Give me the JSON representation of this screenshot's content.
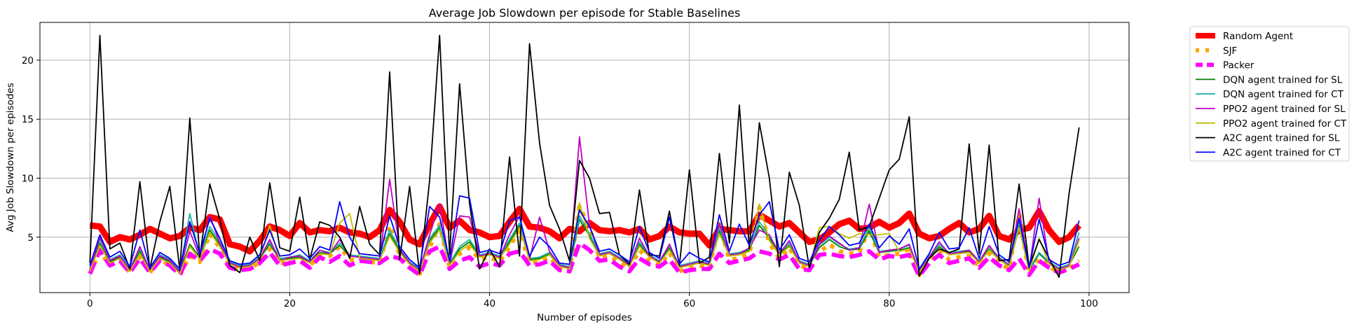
{
  "chart_data": {
    "type": "line",
    "title": "Average Job Slowdown per episode for Stable Baselines",
    "xlabel": "Number of episodes",
    "ylabel": "Avg Job Slowdown per episodes",
    "xlim": [
      -5,
      104
    ],
    "ylim": [
      0.3,
      23.2
    ],
    "xticks": [
      0,
      20,
      40,
      60,
      80,
      100
    ],
    "yticks": [
      5,
      10,
      15,
      20
    ],
    "grid": true,
    "legend_position": "outside-right",
    "series": [
      {
        "name": "Random Agent",
        "color": "#ff0000",
        "style": "solid-thick",
        "values": [
          6.0,
          5.9,
          4.6,
          5.0,
          4.8,
          5.2,
          5.7,
          5.3,
          4.9,
          5.1,
          5.8,
          5.6,
          6.7,
          6.5,
          4.4,
          4.2,
          3.8,
          4.7,
          5.9,
          5.6,
          5.1,
          6.2,
          5.4,
          5.6,
          5.5,
          5.8,
          5.4,
          5.3,
          5.0,
          5.6,
          7.3,
          6.3,
          4.8,
          4.4,
          6.1,
          7.6,
          5.8,
          6.4,
          5.6,
          5.4,
          5.0,
          5.1,
          6.3,
          7.4,
          5.9,
          5.8,
          5.5,
          4.9,
          5.7,
          5.5,
          6.2,
          5.6,
          5.5,
          5.6,
          5.4,
          5.7,
          4.8,
          5.1,
          5.9,
          5.4,
          5.3,
          5.3,
          4.3,
          5.7,
          5.6,
          5.5,
          5.5,
          6.9,
          6.4,
          5.9,
          6.2,
          5.4,
          4.6,
          4.8,
          5.4,
          6.1,
          6.4,
          5.7,
          5.8,
          6.3,
          5.8,
          6.2,
          7.0,
          5.3,
          4.9,
          5.1,
          5.7,
          6.2,
          5.4,
          5.7,
          6.8,
          5.1,
          4.8,
          5.6,
          5.8,
          7.2,
          5.6,
          4.6,
          5.0,
          6.0
        ]
      },
      {
        "name": "SJF",
        "color": "#ffa500",
        "style": "dotted-thick",
        "values": [
          1.9,
          3.8,
          2.6,
          3.0,
          2.0,
          3.3,
          2.0,
          3.1,
          2.6,
          1.8,
          3.4,
          2.9,
          5.3,
          4.1,
          2.6,
          2.3,
          2.3,
          2.9,
          4.0,
          2.8,
          2.8,
          3.0,
          2.6,
          3.4,
          3.4,
          4.2,
          3.1,
          3.0,
          2.9,
          2.8,
          6.0,
          3.5,
          2.5,
          1.9,
          4.1,
          6.1,
          2.4,
          3.6,
          4.1,
          3.1,
          3.3,
          2.9,
          4.2,
          5.6,
          2.8,
          2.9,
          3.3,
          2.3,
          2.1,
          7.6,
          5.8,
          3.2,
          3.4,
          2.9,
          2.3,
          3.9,
          3.0,
          2.6,
          3.7,
          2.1,
          2.4,
          2.6,
          2.4,
          6.1,
          3.1,
          3.2,
          3.6,
          7.5,
          4.5,
          3.2,
          4.1,
          2.6,
          2.3,
          3.7,
          4.4,
          3.8,
          3.6,
          3.7,
          5.8,
          3.3,
          3.5,
          3.6,
          4.0,
          1.8,
          3.0,
          3.8,
          3.1,
          3.3,
          3.4,
          2.5,
          3.6,
          2.8,
          2.3,
          7.0,
          1.9,
          3.2,
          2.5,
          2.0,
          2.3,
          3.0
        ]
      },
      {
        "name": "Packer",
        "color": "#ff00ff",
        "style": "dashed-thick",
        "values": [
          1.9,
          3.9,
          2.6,
          3.0,
          2.0,
          3.2,
          2.0,
          3.0,
          2.6,
          1.8,
          3.6,
          3.0,
          4.0,
          3.6,
          2.4,
          2.2,
          2.3,
          2.8,
          3.7,
          2.6,
          2.8,
          3.0,
          2.4,
          3.3,
          2.9,
          3.4,
          2.6,
          3.0,
          2.9,
          2.8,
          3.4,
          3.2,
          2.4,
          1.8,
          3.8,
          4.2,
          2.3,
          3.0,
          3.3,
          2.5,
          2.8,
          2.6,
          3.6,
          3.8,
          2.6,
          2.7,
          3.0,
          2.2,
          2.1,
          4.5,
          3.9,
          3.0,
          3.1,
          2.5,
          2.1,
          3.2,
          2.7,
          2.5,
          3.1,
          2.0,
          2.2,
          2.3,
          2.3,
          3.6,
          2.8,
          3.0,
          3.2,
          3.8,
          3.6,
          3.1,
          3.5,
          2.3,
          2.2,
          3.5,
          3.6,
          3.4,
          3.3,
          3.5,
          3.8,
          3.1,
          3.4,
          3.3,
          3.5,
          1.7,
          2.8,
          3.5,
          2.8,
          3.0,
          3.2,
          2.4,
          3.3,
          2.6,
          2.2,
          3.2,
          1.8,
          3.0,
          2.4,
          2.0,
          2.3,
          2.7
        ]
      },
      {
        "name": "DQN agent trained for SL",
        "color": "#008000",
        "style": "solid",
        "values": [
          2.3,
          4.5,
          2.9,
          3.3,
          2.3,
          3.8,
          2.2,
          3.3,
          2.9,
          2.1,
          4.4,
          3.3,
          5.6,
          4.4,
          2.8,
          2.5,
          2.6,
          3.2,
          4.4,
          3.1,
          3.2,
          3.3,
          2.9,
          3.7,
          3.6,
          4.3,
          3.4,
          3.3,
          3.2,
          3.1,
          5.3,
          3.9,
          2.8,
          2.2,
          4.7,
          5.8,
          2.7,
          4.0,
          4.6,
          3.4,
          3.6,
          3.3,
          4.6,
          6.0,
          3.1,
          3.2,
          3.6,
          2.6,
          2.4,
          6.5,
          5.1,
          3.5,
          3.7,
          3.2,
          2.6,
          4.4,
          3.4,
          2.9,
          4.1,
          2.5,
          2.7,
          2.9,
          2.7,
          5.5,
          3.5,
          3.6,
          3.9,
          6.0,
          4.9,
          3.6,
          4.3,
          2.9,
          2.6,
          4.1,
          4.8,
          4.2,
          3.9,
          4.0,
          5.5,
          3.7,
          3.8,
          3.9,
          4.1,
          2.1,
          3.3,
          4.2,
          3.6,
          3.7,
          3.8,
          2.9,
          4.0,
          3.2,
          2.6,
          6.0,
          2.2,
          3.6,
          2.8,
          2.3,
          2.6,
          4.2
        ]
      },
      {
        "name": "DQN agent trained for CT",
        "color": "#20b2aa",
        "style": "solid",
        "values": [
          2.5,
          4.8,
          3.1,
          3.5,
          2.4,
          4.0,
          2.3,
          3.5,
          3.1,
          2.2,
          7.0,
          3.4,
          5.9,
          4.6,
          2.9,
          2.6,
          2.7,
          3.3,
          4.6,
          3.2,
          3.3,
          3.5,
          3.0,
          3.9,
          3.7,
          4.5,
          3.5,
          3.4,
          3.3,
          3.2,
          5.6,
          4.0,
          2.9,
          2.3,
          4.9,
          6.0,
          2.8,
          4.2,
          4.8,
          3.5,
          3.7,
          3.4,
          4.8,
          6.2,
          3.2,
          3.3,
          3.7,
          2.7,
          2.5,
          6.8,
          5.3,
          3.6,
          3.8,
          3.3,
          2.7,
          4.6,
          3.5,
          3.0,
          4.3,
          2.6,
          2.8,
          3.0,
          2.8,
          5.8,
          3.6,
          3.7,
          4.0,
          6.3,
          5.1,
          3.7,
          4.5,
          3.0,
          2.7,
          4.3,
          5.0,
          4.4,
          4.0,
          4.1,
          5.8,
          3.8,
          3.9,
          4.0,
          4.3,
          2.2,
          3.4,
          4.4,
          3.7,
          3.8,
          3.9,
          3.0,
          4.2,
          3.3,
          2.7,
          6.3,
          2.3,
          3.7,
          2.9,
          2.4,
          2.7,
          5.4
        ]
      },
      {
        "name": "PPO2 agent trained for SL",
        "color": "#c000c0",
        "style": "solid",
        "values": [
          2.2,
          5.0,
          3.0,
          3.4,
          2.2,
          4.2,
          2.2,
          3.4,
          3.0,
          2.0,
          5.5,
          3.3,
          6.8,
          4.5,
          2.8,
          2.5,
          2.6,
          3.2,
          4.8,
          3.0,
          3.3,
          3.4,
          2.9,
          3.9,
          3.6,
          4.8,
          3.4,
          3.3,
          3.2,
          3.1,
          9.9,
          4.0,
          2.8,
          2.2,
          5.2,
          7.8,
          2.7,
          6.8,
          6.7,
          3.4,
          3.6,
          3.3,
          5.2,
          6.8,
          3.1,
          6.7,
          3.8,
          2.6,
          2.4,
          13.5,
          6.0,
          3.5,
          3.7,
          3.2,
          2.6,
          4.9,
          3.4,
          2.9,
          4.4,
          2.5,
          2.7,
          2.9,
          2.7,
          6.2,
          3.5,
          3.6,
          4.1,
          5.6,
          5.2,
          3.6,
          4.7,
          2.9,
          2.6,
          4.4,
          5.1,
          4.5,
          3.9,
          4.1,
          7.8,
          3.7,
          3.9,
          4.0,
          4.4,
          2.1,
          3.3,
          4.6,
          3.6,
          3.7,
          3.9,
          2.9,
          4.3,
          3.2,
          2.6,
          7.4,
          2.2,
          8.3,
          2.8,
          2.3,
          2.6,
          4.9
        ]
      },
      {
        "name": "PPO2 agent trained for CT",
        "color": "#bfbf00",
        "style": "solid",
        "values": [
          2.1,
          4.3,
          2.8,
          3.2,
          2.1,
          3.6,
          2.1,
          3.2,
          2.8,
          1.9,
          4.2,
          3.1,
          5.4,
          4.2,
          2.7,
          2.4,
          2.5,
          3.1,
          6.0,
          3.0,
          3.1,
          3.2,
          2.8,
          3.6,
          3.5,
          6.2,
          7.0,
          3.2,
          3.1,
          3.0,
          5.1,
          3.7,
          2.7,
          2.1,
          4.5,
          5.6,
          2.6,
          3.8,
          4.4,
          3.3,
          3.5,
          3.2,
          4.4,
          5.8,
          3.0,
          3.1,
          3.5,
          2.5,
          2.3,
          7.9,
          4.9,
          3.4,
          3.6,
          3.1,
          2.5,
          4.2,
          3.3,
          2.8,
          3.9,
          2.4,
          2.6,
          2.8,
          2.6,
          5.3,
          3.4,
          3.5,
          3.8,
          7.8,
          4.7,
          3.5,
          4.2,
          2.8,
          2.5,
          5.8,
          5.9,
          5.3,
          4.9,
          5.3,
          5.2,
          5.2,
          5.3,
          3.8,
          4.0,
          2.0,
          3.2,
          4.0,
          3.5,
          3.6,
          3.7,
          2.8,
          3.9,
          3.1,
          2.5,
          5.8,
          2.1,
          4.9,
          2.7,
          2.2,
          2.5,
          4.7
        ]
      },
      {
        "name": "A2C agent trained for SL",
        "color": "#000000",
        "style": "solid",
        "values": [
          2.8,
          22.1,
          4.0,
          4.5,
          2.3,
          9.7,
          2.3,
          6.3,
          9.3,
          2.2,
          15.1,
          3.3,
          9.5,
          6.5,
          2.6,
          2.0,
          5.0,
          3.0,
          9.6,
          4.1,
          3.8,
          8.4,
          3.1,
          6.3,
          6.0,
          5.0,
          3.2,
          7.6,
          4.4,
          3.5,
          19.0,
          3.1,
          9.3,
          1.9,
          9.8,
          22.1,
          3.5,
          18.0,
          7.8,
          2.3,
          4.0,
          2.5,
          11.8,
          3.4,
          21.4,
          13.0,
          7.7,
          5.7,
          3.0,
          11.5,
          10.0,
          7.0,
          7.1,
          3.5,
          2.7,
          9.0,
          3.5,
          3.4,
          7.2,
          2.6,
          10.7,
          2.8,
          3.3,
          12.1,
          4.5,
          16.2,
          4.0,
          14.7,
          10.0,
          2.5,
          10.5,
          7.7,
          2.4,
          5.4,
          6.6,
          8.2,
          12.2,
          5.6,
          5.9,
          8.3,
          10.7,
          11.6,
          15.2,
          1.7,
          3.2,
          4.0,
          3.7,
          4.0,
          12.9,
          3.6,
          12.8,
          3.0,
          3.1,
          9.5,
          2.5,
          4.8,
          3.2,
          1.6,
          8.7,
          14.3
        ]
      },
      {
        "name": "A2C agent trained for CT",
        "color": "#0000ff",
        "style": "solid",
        "values": [
          2.6,
          5.2,
          3.3,
          3.8,
          2.5,
          5.6,
          2.4,
          3.7,
          3.2,
          2.3,
          6.3,
          3.6,
          6.6,
          4.9,
          3.0,
          2.7,
          2.8,
          3.5,
          5.6,
          3.4,
          3.5,
          4.0,
          3.2,
          4.2,
          3.9,
          8.0,
          5.0,
          3.6,
          3.5,
          3.4,
          6.8,
          4.2,
          3.1,
          2.4,
          7.6,
          6.7,
          3.0,
          8.5,
          8.3,
          3.7,
          3.9,
          3.6,
          6.4,
          6.7,
          3.4,
          5.0,
          4.2,
          2.8,
          2.7,
          7.3,
          5.9,
          3.8,
          4.0,
          3.5,
          2.9,
          5.9,
          3.7,
          3.2,
          6.7,
          2.7,
          3.7,
          3.2,
          2.9,
          6.9,
          3.8,
          6.1,
          4.3,
          6.9,
          8.0,
          3.9,
          5.2,
          3.2,
          2.9,
          4.7,
          5.9,
          5.2,
          4.3,
          4.5,
          6.1,
          4.1,
          5.1,
          4.4,
          5.7,
          2.3,
          3.6,
          5.4,
          4.0,
          4.1,
          5.8,
          3.2,
          5.9,
          3.5,
          2.9,
          6.6,
          2.4,
          6.5,
          3.1,
          2.6,
          2.9,
          6.4
        ]
      }
    ]
  }
}
